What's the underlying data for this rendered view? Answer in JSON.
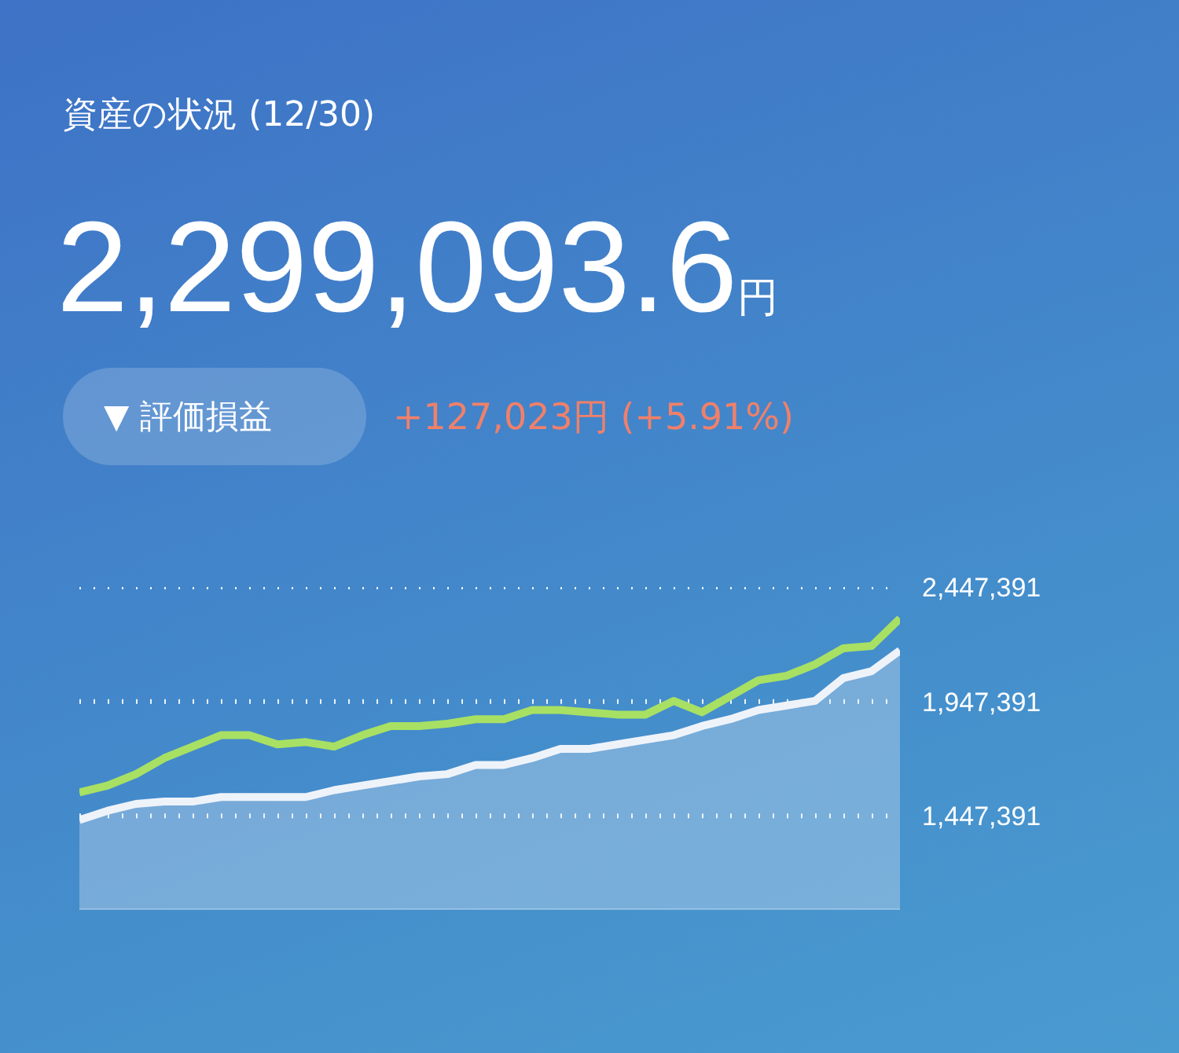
{
  "chart_data": {
    "type": "line",
    "title": "資産の状況 (12/30)",
    "annotations": [
      "2,299,093.6円",
      "▼ 評価損益",
      "+127,023円 (+5.91%)"
    ],
    "categories": [
      null,
      null,
      null,
      null,
      null,
      null,
      null,
      null,
      null,
      null,
      null,
      null,
      null,
      null,
      null,
      null,
      null,
      null,
      null,
      null,
      null,
      null,
      null,
      null,
      null,
      null,
      null,
      null,
      null,
      null
    ],
    "series": [
      {
        "type": "area",
        "color": "#eef3fa",
        "values": [
          1430000,
          1470000,
          1500000,
          1510000,
          1510000,
          1530000,
          1530000,
          1530000,
          1530000,
          1560000,
          1580000,
          1600000,
          1620000,
          1630000,
          1670000,
          1670000,
          1700000,
          1740000,
          1740000,
          1760000,
          1780000,
          1800000,
          1840000,
          1870000,
          1910000,
          1930000,
          1950000,
          2050000,
          2080000,
          2170000
        ]
      },
      {
        "color": "#a8e063",
        "values": [
          1550000,
          1580000,
          1630000,
          1700000,
          1750000,
          1800000,
          1800000,
          1760000,
          1770000,
          1750000,
          1800000,
          1840000,
          1840000,
          1850000,
          1870000,
          1870000,
          1910000,
          1910000,
          1900000,
          1890000,
          1890000,
          1950000,
          1900000,
          1970000,
          2040000,
          2060000,
          2110000,
          2180000,
          2190000,
          2310000
        ]
      }
    ],
    "ylim": [
      1040000,
      2447391
    ],
    "yticks": [
      {
        "value": 1447391,
        "label": "1,447,391"
      },
      {
        "value": 1947391,
        "label": "1,947,391"
      },
      {
        "value": 2447391,
        "label": "2,447,391"
      }
    ],
    "grid": "y",
    "tick_labels": "y",
    "marker": "none"
  }
}
